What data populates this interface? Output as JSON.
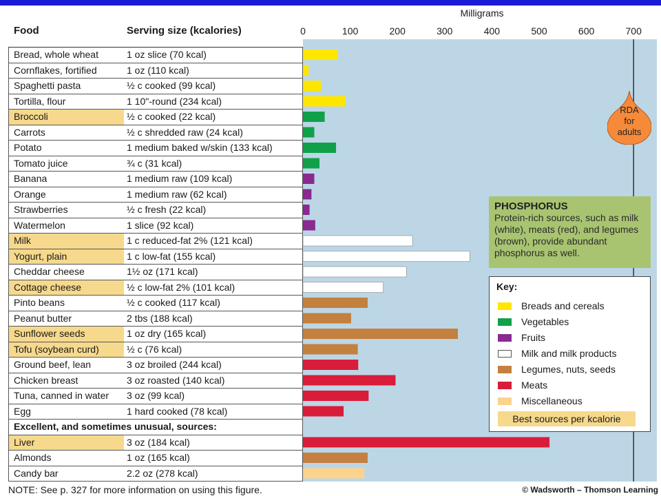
{
  "header": {
    "food_label": "Food",
    "serving_label": "Serving size (kcalories)",
    "unit_label": "Milligrams"
  },
  "subheading": "Excellent, and sometimes unusual, sources:",
  "note": "NOTE: See p. 327 for more information on using this figure.",
  "copyright": "© Wadsworth – Thomson Learning",
  "rda_label": [
    "RDA",
    "for",
    "adults"
  ],
  "callout": {
    "title": "PHOSPHORUS",
    "text": "Protein-rich sources, such as milk (white), meats (red), and legumes (brown), provide abundant phosphorus as well."
  },
  "key": {
    "title": "Key:",
    "items": [
      {
        "label": "Breads and cereals",
        "color": "#ffe600"
      },
      {
        "label": "Vegetables",
        "color": "#10a04a"
      },
      {
        "label": "Fruits",
        "color": "#8a2a90"
      },
      {
        "label": "Milk and milk products",
        "color": "#ffffff"
      },
      {
        "label": "Legumes, nuts, seeds",
        "color": "#c4803e"
      },
      {
        "label": "Meats",
        "color": "#d81c3a"
      },
      {
        "label": "Miscellaneous",
        "color": "#fcd28c"
      }
    ],
    "best_label": "Best sources per kcalorie",
    "best_color": "#f6d98c"
  },
  "chart_data": {
    "type": "bar",
    "orientation": "horizontal",
    "xlabel": "Milligrams",
    "xlim": [
      0,
      750
    ],
    "xticks": [
      0,
      100,
      200,
      300,
      400,
      500,
      600,
      700
    ],
    "rda": 700,
    "rows": [
      {
        "food": "Bread, whole wheat",
        "serving": "1 oz slice (70 kcal)",
        "value": 74,
        "group": "Breads and cereals",
        "best": false
      },
      {
        "food": "Cornflakes, fortified",
        "serving": "1 oz (110 kcal)",
        "value": 12,
        "group": "Breads and cereals",
        "best": false
      },
      {
        "food": "Spaghetti pasta",
        "serving": "½ c cooked (99 kcal)",
        "value": 38,
        "group": "Breads and cereals",
        "best": false
      },
      {
        "food": "Tortilla, flour",
        "serving": "1 10\"-round (234 kcal)",
        "value": 90,
        "group": "Breads and cereals",
        "best": false
      },
      {
        "food": "Broccoli",
        "serving": "½ c cooked (22 kcal)",
        "value": 46,
        "group": "Vegetables",
        "best": true
      },
      {
        "food": "Carrots",
        "serving": "½ c shredded raw (24 kcal)",
        "value": 24,
        "group": "Vegetables",
        "best": false
      },
      {
        "food": "Potato",
        "serving": "1 medium baked w/skin (133 kcal)",
        "value": 70,
        "group": "Vegetables",
        "best": false
      },
      {
        "food": "Tomato juice",
        "serving": "¾ c (31 kcal)",
        "value": 35,
        "group": "Vegetables",
        "best": false
      },
      {
        "food": "Banana",
        "serving": "1 medium raw (109 kcal)",
        "value": 24,
        "group": "Fruits",
        "best": false
      },
      {
        "food": "Orange",
        "serving": "1 medium raw (62 kcal)",
        "value": 18,
        "group": "Fruits",
        "best": false
      },
      {
        "food": "Strawberries",
        "serving": "½ c fresh (22 kcal)",
        "value": 14,
        "group": "Fruits",
        "best": false
      },
      {
        "food": "Watermelon",
        "serving": "1 slice (92 kcal)",
        "value": 26,
        "group": "Fruits",
        "best": false
      },
      {
        "food": "Milk",
        "serving": "1 c reduced-fat 2% (121 kcal)",
        "value": 232,
        "group": "Milk and milk products",
        "best": true
      },
      {
        "food": "Yogurt, plain",
        "serving": "1 c low-fat (155 kcal)",
        "value": 353,
        "group": "Milk and milk products",
        "best": true
      },
      {
        "food": "Cheddar cheese",
        "serving": "1½ oz (171 kcal)",
        "value": 219,
        "group": "Milk and milk products",
        "best": false
      },
      {
        "food": "Cottage cheese",
        "serving": "½ c low-fat 2% (101 kcal)",
        "value": 170,
        "group": "Milk and milk products",
        "best": true
      },
      {
        "food": "Pinto beans",
        "serving": "½ c cooked (117 kcal)",
        "value": 137,
        "group": "Legumes, nuts, seeds",
        "best": false
      },
      {
        "food": "Peanut butter",
        "serving": "2 tbs (188 kcal)",
        "value": 102,
        "group": "Legumes, nuts, seeds",
        "best": false
      },
      {
        "food": "Sunflower seeds",
        "serving": "1 oz dry (165 kcal)",
        "value": 328,
        "group": "Legumes, nuts, seeds",
        "best": true
      },
      {
        "food": "Tofu (soybean curd)",
        "serving": "½ c (76 kcal)",
        "value": 116,
        "group": "Legumes, nuts, seeds",
        "best": true
      },
      {
        "food": "Ground beef, lean",
        "serving": "3 oz broiled (244 kcal)",
        "value": 117,
        "group": "Meats",
        "best": false
      },
      {
        "food": "Chicken breast",
        "serving": "3 oz roasted (140 kcal)",
        "value": 196,
        "group": "Meats",
        "best": false
      },
      {
        "food": "Tuna, canned in water",
        "serving": "3 oz (99 kcal)",
        "value": 139,
        "group": "Meats",
        "best": false
      },
      {
        "food": "Egg",
        "serving": "1 hard cooked (78 kcal)",
        "value": 86,
        "group": "Meats",
        "best": false
      },
      {
        "food": "Liver",
        "serving": "3 oz (184 kcal)",
        "value": 522,
        "group": "Meats",
        "best": true
      },
      {
        "food": "Almonds",
        "serving": "1 oz (165 kcal)",
        "value": 137,
        "group": "Legumes, nuts, seeds",
        "best": false
      },
      {
        "food": "Candy bar",
        "serving": "2.2 oz (278 kcal)",
        "value": 130,
        "group": "Miscellaneous",
        "best": false
      }
    ]
  }
}
